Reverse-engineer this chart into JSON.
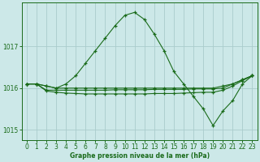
{
  "title": "Graphe pression niveau de la mer (hPa)",
  "bg_color": "#cce8e8",
  "grid_color": "#aacccc",
  "line_color": "#1a6b1a",
  "ylim": [
    1014.75,
    1018.05
  ],
  "yticks": [
    1015,
    1016,
    1017
  ],
  "xlim": [
    -0.5,
    23.5
  ],
  "xticks": [
    0,
    1,
    2,
    3,
    4,
    5,
    6,
    7,
    8,
    9,
    10,
    11,
    12,
    13,
    14,
    15,
    16,
    17,
    18,
    19,
    20,
    21,
    22,
    23
  ],
  "series": [
    [
      1016.1,
      1016.1,
      1016.05,
      1016.0,
      1016.1,
      1016.3,
      1016.6,
      1016.9,
      1017.2,
      1017.5,
      1017.75,
      1017.82,
      1017.65,
      1017.3,
      1016.9,
      1016.4,
      1016.1,
      1015.8,
      1015.5,
      1015.1,
      1015.45,
      1015.7,
      1016.1,
      1016.3
    ],
    [
      1016.1,
      1016.1,
      1016.05,
      1016.0,
      1016.0,
      1016.0,
      1016.0,
      1016.0,
      1016.0,
      1016.0,
      1016.0,
      1016.0,
      1016.0,
      1016.0,
      1016.0,
      1016.0,
      1016.0,
      1016.0,
      1016.0,
      1016.0,
      1016.05,
      1016.1,
      1016.2,
      1016.3
    ],
    [
      1016.1,
      1016.1,
      1015.95,
      1015.95,
      1015.95,
      1015.95,
      1015.95,
      1015.95,
      1015.95,
      1015.96,
      1015.96,
      1015.96,
      1015.96,
      1015.97,
      1015.97,
      1015.97,
      1015.97,
      1015.98,
      1015.98,
      1015.98,
      1016.0,
      1016.1,
      1016.2,
      1016.3
    ],
    [
      1016.1,
      1016.1,
      1015.93,
      1015.9,
      1015.88,
      1015.87,
      1015.86,
      1015.86,
      1015.86,
      1015.86,
      1015.86,
      1015.86,
      1015.86,
      1015.87,
      1015.87,
      1015.87,
      1015.88,
      1015.89,
      1015.9,
      1015.9,
      1015.95,
      1016.05,
      1016.18,
      1016.3
    ]
  ]
}
